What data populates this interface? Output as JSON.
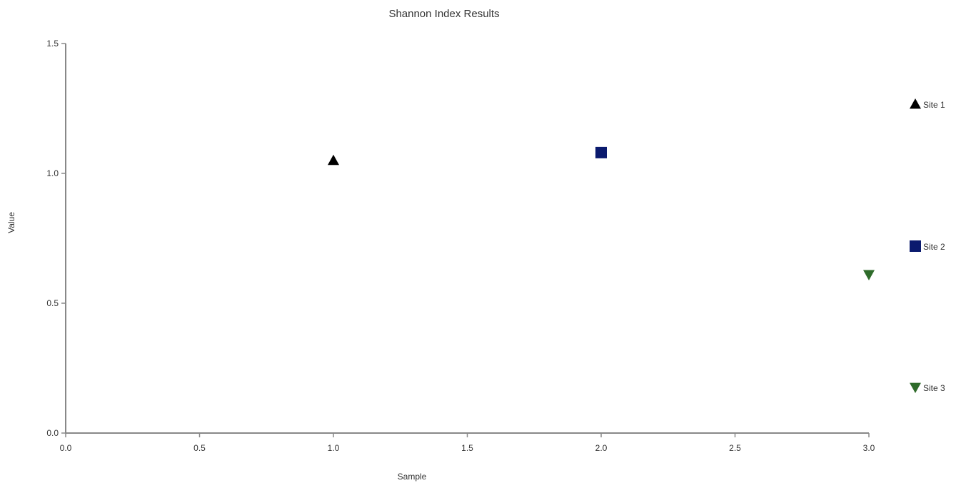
{
  "chart_data": {
    "type": "scatter",
    "title": "Shannon Index Results",
    "xlabel": "Sample",
    "ylabel": "Value",
    "xlim": [
      0.0,
      3.0
    ],
    "ylim": [
      0.0,
      1.5
    ],
    "x_ticks": [
      "0.0",
      "0.5",
      "1.0",
      "1.5",
      "2.0",
      "2.5",
      "3.0"
    ],
    "y_ticks": [
      "0.0",
      "0.5",
      "1.0",
      "1.5"
    ],
    "grid": false,
    "legend_position": "right",
    "series": [
      {
        "name": "Site 1",
        "marker": "triangle-up",
        "color": "#000000",
        "points": [
          {
            "x": 1.0,
            "y": 1.05
          }
        ]
      },
      {
        "name": "Site 2",
        "marker": "square",
        "color": "#0a1a6e",
        "points": [
          {
            "x": 2.0,
            "y": 1.08
          }
        ]
      },
      {
        "name": "Site 3",
        "marker": "triangle-down",
        "color": "#2e6b2a",
        "points": [
          {
            "x": 3.0,
            "y": 0.61
          }
        ]
      }
    ]
  }
}
